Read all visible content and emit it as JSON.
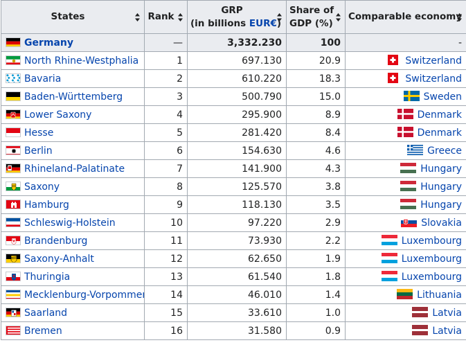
{
  "headers": {
    "states": "States",
    "rank": "Rank",
    "grp_line1": "GRP",
    "grp_line2_prefix": "(in billions ",
    "grp_currency": "EUR€",
    "grp_line2_suffix": ")",
    "share_line1": "Share of",
    "share_line2": "GDP (%)",
    "comparable": "Comparable economy"
  },
  "total": {
    "state": "Germany",
    "rank": "—",
    "grp": "3,332.230",
    "share": "100",
    "comparable": "-"
  },
  "rows": [
    {
      "state": "North Rhine-Westphalia",
      "rank": "1",
      "grp": "697.130",
      "share": "20.9",
      "comparable": "Switzerland",
      "state_flag": "nrw-flag",
      "econ_flag": "switzerland-flag"
    },
    {
      "state": "Bavaria",
      "rank": "2",
      "grp": "610.220",
      "share": "18.3",
      "comparable": "Switzerland",
      "state_flag": "bavaria-flag",
      "econ_flag": "switzerland-flag"
    },
    {
      "state": "Baden-Württemberg",
      "rank": "3",
      "grp": "500.790",
      "share": "15.0",
      "comparable": "Sweden",
      "state_flag": "baden-wuerttemberg-flag",
      "econ_flag": "sweden-flag"
    },
    {
      "state": "Lower Saxony",
      "rank": "4",
      "grp": "295.900",
      "share": "8.9",
      "comparable": "Denmark",
      "state_flag": "lower-saxony-flag",
      "econ_flag": "denmark-flag"
    },
    {
      "state": "Hesse",
      "rank": "5",
      "grp": "281.420",
      "share": "8.4",
      "comparable": "Denmark",
      "state_flag": "hesse-flag",
      "econ_flag": "denmark-flag"
    },
    {
      "state": "Berlin",
      "rank": "6",
      "grp": "154.630",
      "share": "4.6",
      "comparable": "Greece",
      "state_flag": "berlin-flag",
      "econ_flag": "greece-flag"
    },
    {
      "state": "Rhineland-Palatinate",
      "rank": "7",
      "grp": "141.900",
      "share": "4.3",
      "comparable": "Hungary",
      "state_flag": "rhineland-palatinate-flag",
      "econ_flag": "hungary-flag"
    },
    {
      "state": "Saxony",
      "rank": "8",
      "grp": "125.570",
      "share": "3.8",
      "comparable": "Hungary",
      "state_flag": "saxony-flag",
      "econ_flag": "hungary-flag"
    },
    {
      "state": "Hamburg",
      "rank": "9",
      "grp": "118.130",
      "share": "3.5",
      "comparable": "Hungary",
      "state_flag": "hamburg-flag",
      "econ_flag": "hungary-flag"
    },
    {
      "state": "Schleswig-Holstein",
      "rank": "10",
      "grp": "97.220",
      "share": "2.9",
      "comparable": "Slovakia",
      "state_flag": "schleswig-holstein-flag",
      "econ_flag": "slovakia-flag"
    },
    {
      "state": "Brandenburg",
      "rank": "11",
      "grp": "73.930",
      "share": "2.2",
      "comparable": "Luxembourg",
      "state_flag": "brandenburg-flag",
      "econ_flag": "luxembourg-flag"
    },
    {
      "state": "Saxony-Anhalt",
      "rank": "12",
      "grp": "62.650",
      "share": "1.9",
      "comparable": "Luxembourg",
      "state_flag": "saxony-anhalt-flag",
      "econ_flag": "luxembourg-flag"
    },
    {
      "state": "Thuringia",
      "rank": "13",
      "grp": "61.540",
      "share": "1.8",
      "comparable": "Luxembourg",
      "state_flag": "thuringia-flag",
      "econ_flag": "luxembourg-flag"
    },
    {
      "state": "Mecklenburg-Vorpommern",
      "rank": "14",
      "grp": "46.010",
      "share": "1.4",
      "comparable": "Lithuania",
      "state_flag": "mecklenburg-vorpommern-flag",
      "econ_flag": "lithuania-flag"
    },
    {
      "state": "Saarland",
      "rank": "15",
      "grp": "33.610",
      "share": "1.0",
      "comparable": "Latvia",
      "state_flag": "saarland-flag",
      "econ_flag": "latvia-flag"
    },
    {
      "state": "Bremen",
      "rank": "16",
      "grp": "31.580",
      "share": "0.9",
      "comparable": "Latvia",
      "state_flag": "bremen-flag",
      "econ_flag": "latvia-flag"
    }
  ]
}
